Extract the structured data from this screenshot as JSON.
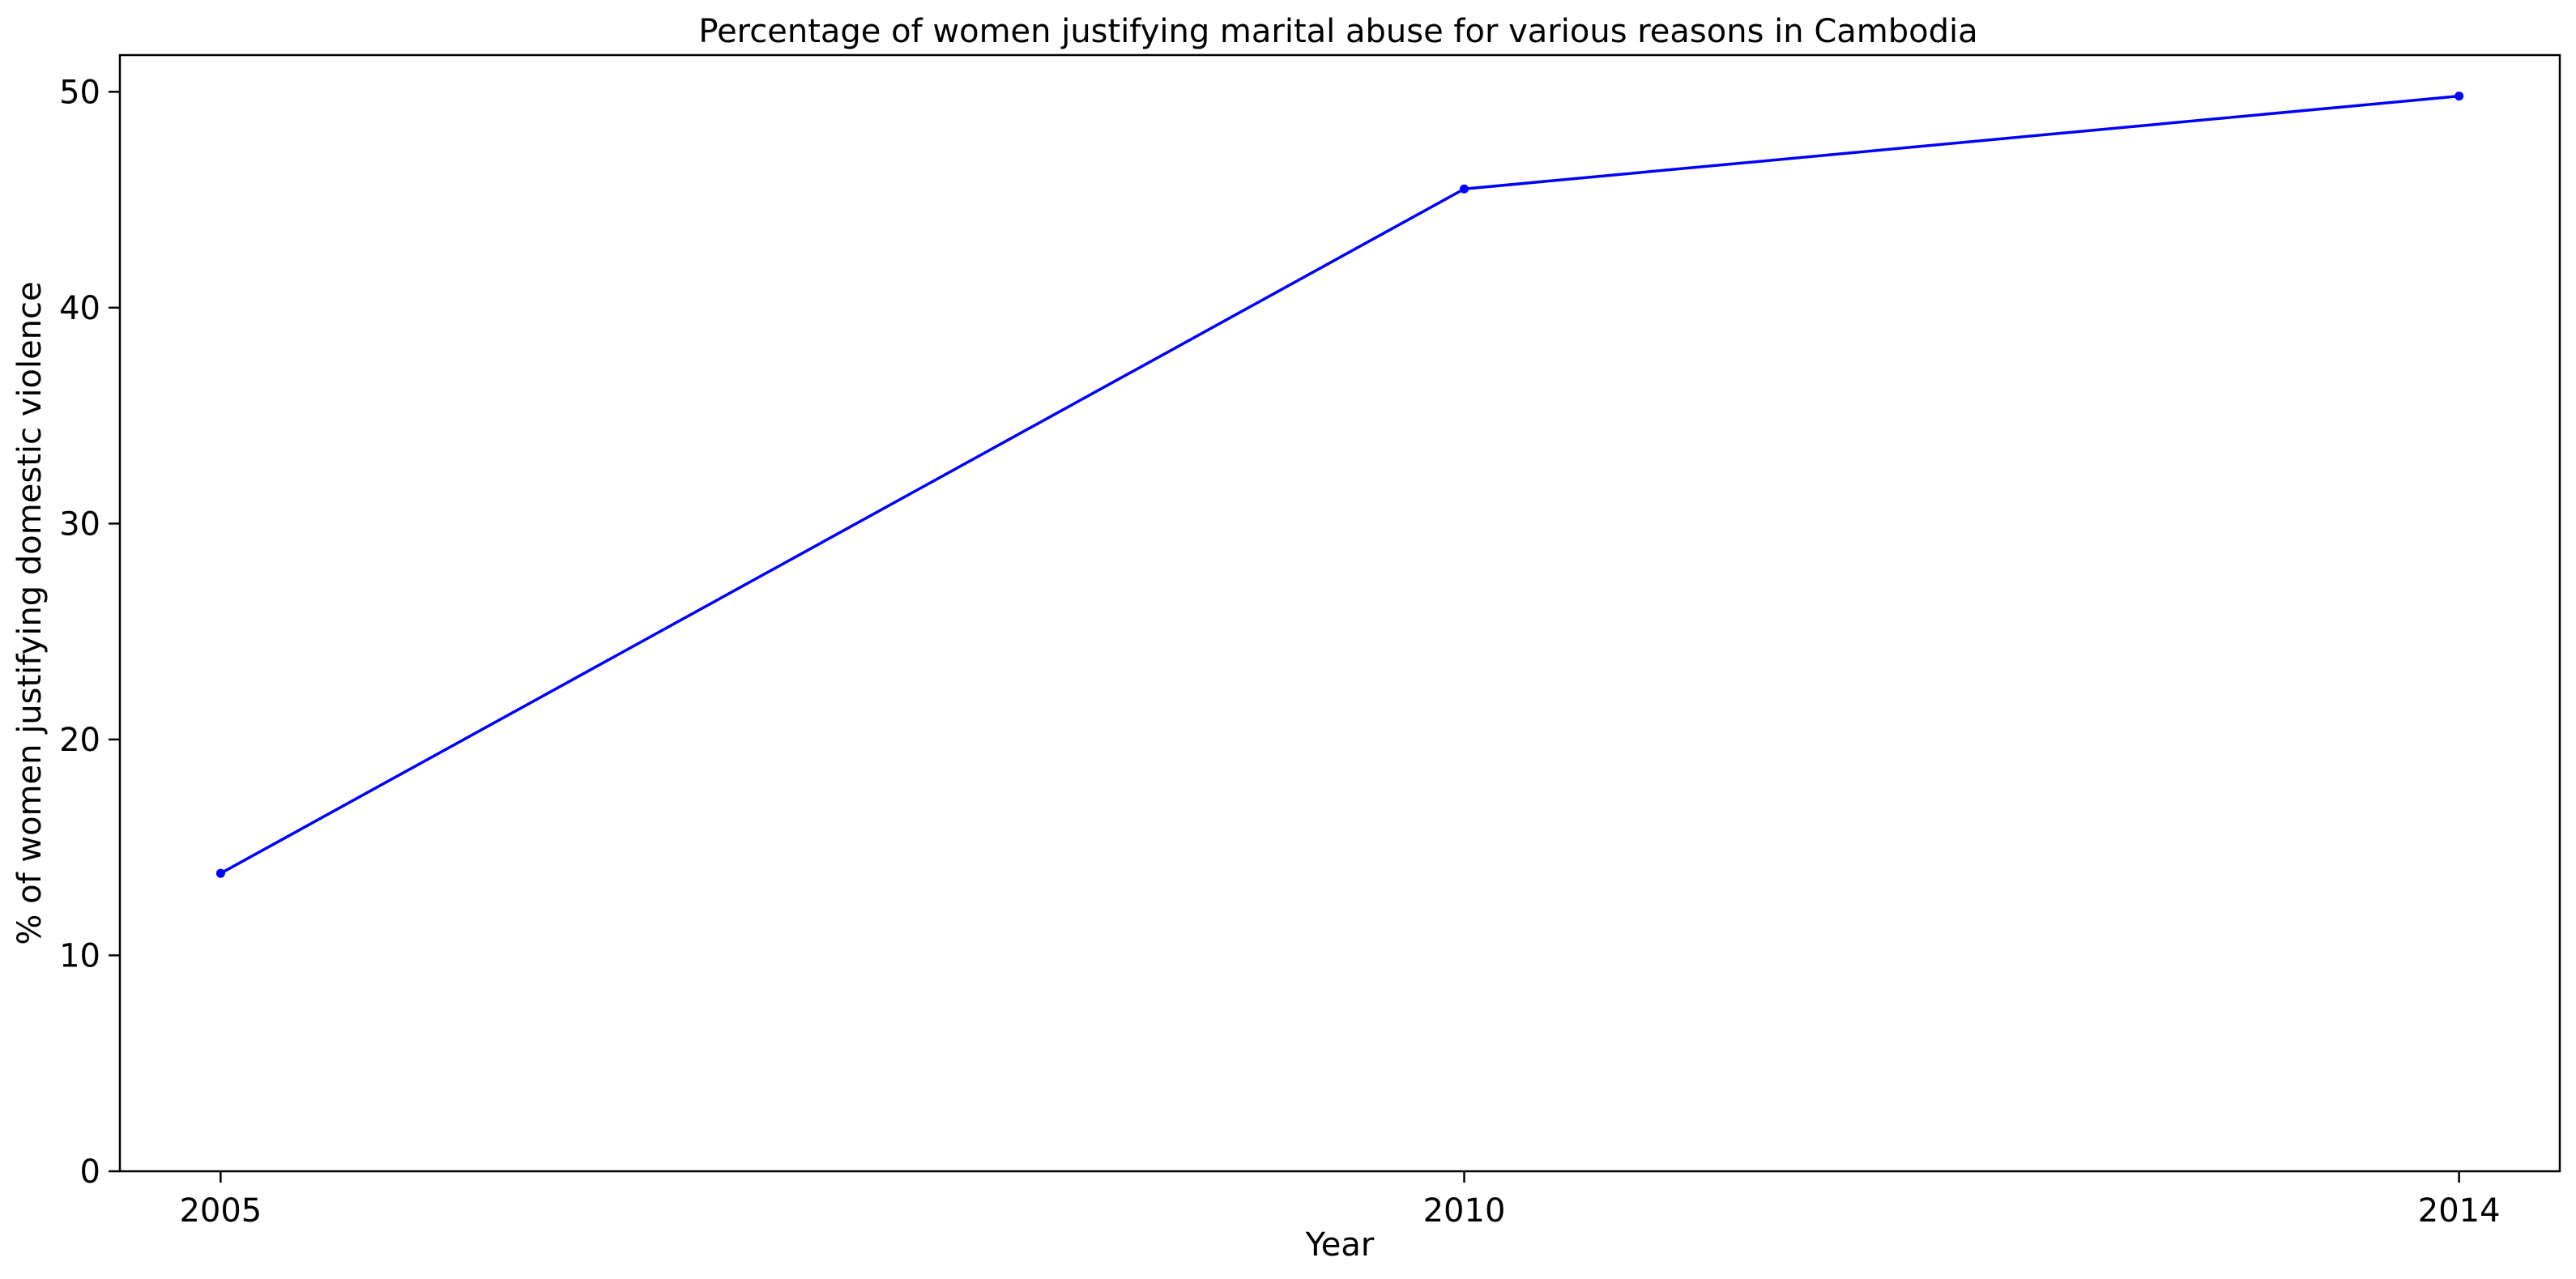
{
  "chart_data": {
    "type": "line",
    "title": "Percentage of women justifying marital abuse for various reasons in Cambodia",
    "xlabel": "Year",
    "ylabel": "% of women justifying domestic violence",
    "x": [
      "2005",
      "2010",
      "2014"
    ],
    "x_values": [
      2005,
      2010,
      2014
    ],
    "x_ticks": [
      "2005",
      "2010",
      "2014"
    ],
    "y_ticks": [
      "0",
      "10",
      "20",
      "30",
      "40",
      "50"
    ],
    "y_tick_values": [
      0,
      10,
      20,
      30,
      40,
      50
    ],
    "ylim": [
      0,
      51.7
    ],
    "grid": false,
    "series": [
      {
        "values": [
          13.8,
          45.5,
          49.8
        ],
        "color": "#0000ff",
        "marker": "circle"
      }
    ]
  }
}
